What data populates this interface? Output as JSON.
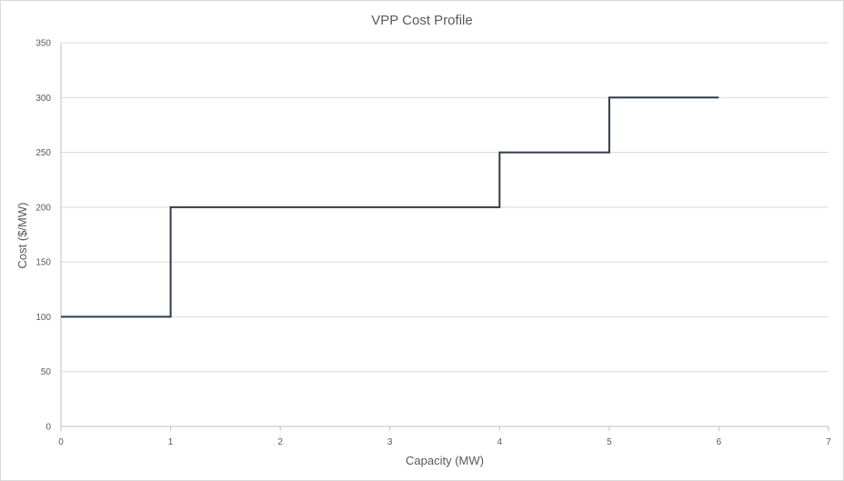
{
  "chart_data": {
    "type": "line",
    "title": "VPP Cost Profile",
    "xlabel": "Capacity (MW)",
    "ylabel": "Cost  ($/MW)",
    "xlim": [
      0,
      7
    ],
    "ylim": [
      0,
      350
    ],
    "x_ticks": [
      "0",
      "1",
      "2",
      "3",
      "4",
      "5",
      "6",
      "7"
    ],
    "y_ticks": [
      "0",
      "50",
      "100",
      "150",
      "200",
      "250",
      "300",
      "350"
    ],
    "grid": "horizontal",
    "legend": "none",
    "series": [
      {
        "style": "step",
        "color": "#2f3b47",
        "points": [
          {
            "x": 0,
            "y": 100
          },
          {
            "x": 1,
            "y": 100
          },
          {
            "x": 1,
            "y": 200
          },
          {
            "x": 4,
            "y": 200
          },
          {
            "x": 4,
            "y": 250
          },
          {
            "x": 5,
            "y": 250
          },
          {
            "x": 5,
            "y": 300
          },
          {
            "x": 6,
            "y": 300
          }
        ]
      }
    ]
  }
}
